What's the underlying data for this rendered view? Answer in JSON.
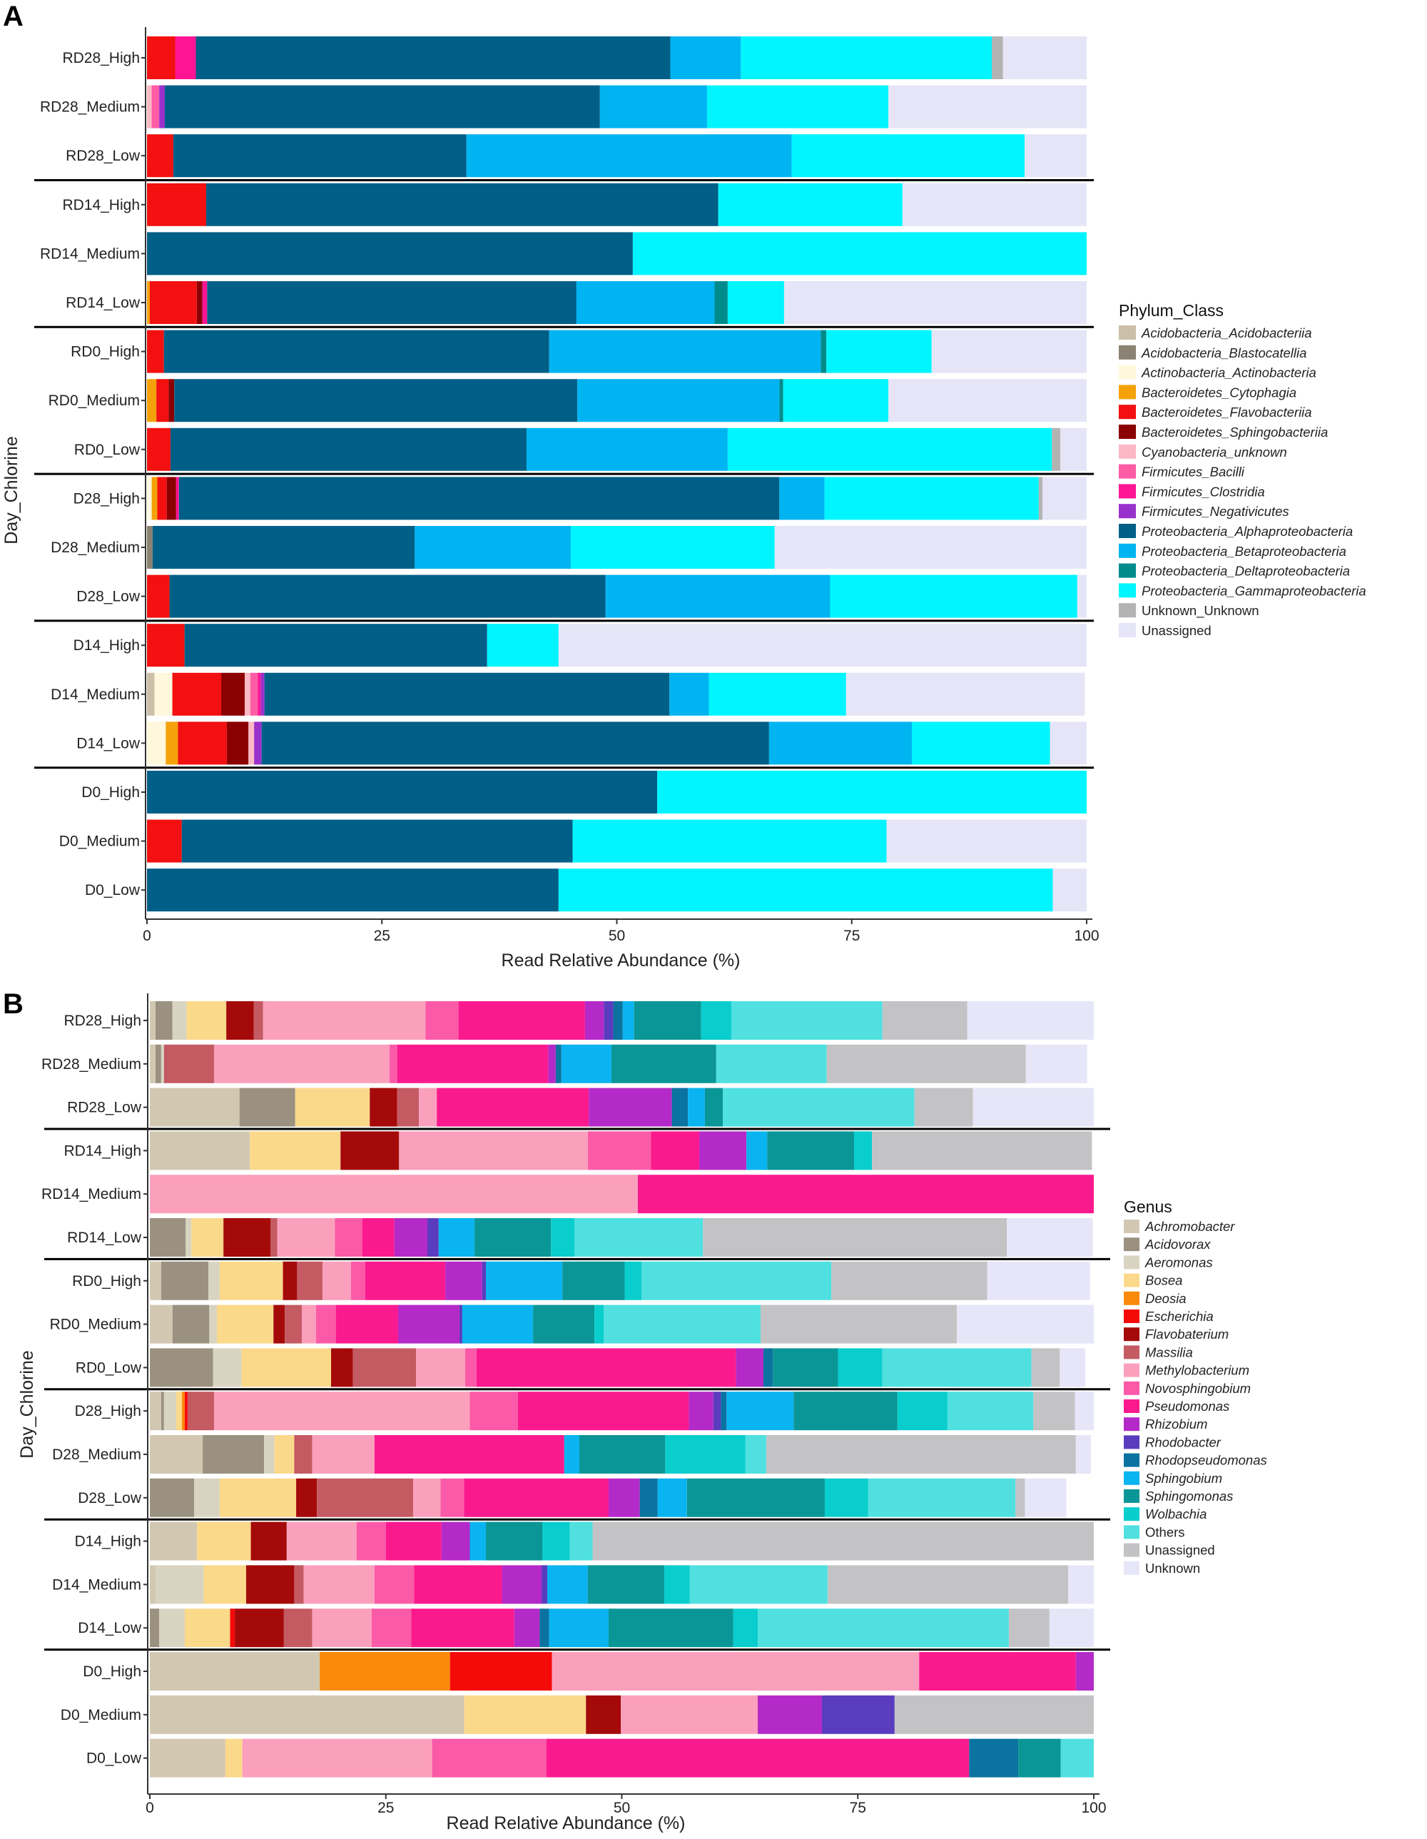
{
  "colors": {
    "Acidobacteria_Acidobacteriia": "#cbbfa9",
    "Acidobacteria_Blastocatellia": "#8b8274",
    "Actinobacteria_Actinobacteria": "#fff8dc",
    "Bacteroidetes_Cytophagia": "#f5a20a",
    "Bacteroidetes_Flavobacteriia": "#f21010",
    "Bacteroidetes_Sphingobacteriia": "#8b0000",
    "Cyanobacteria_unknown": "#fcb8c4",
    "Firmicutes_Bacilli": "#ff5ca6",
    "Firmicutes_Clostridia": "#ff1493",
    "Firmicutes_Negativicutes": "#9932cc",
    "Proteobacteria_Alphaproteobacteria": "#005f87",
    "Proteobacteria_Betaproteobacteria": "#00b4f2",
    "Proteobacteria_Deltaproteobacteria": "#008b8b",
    "Proteobacteria_Gammaproteobacteria": "#00f5ff",
    "Unknown_Unknown": "#b3b3b3",
    "Unassigned_A": "#e5e5f7",
    "Achromobacter": "#d2c8b2",
    "Acidovorax": "#9a9180",
    "Aeromonas": "#d9d4c1",
    "Bosea": "#fbd98a",
    "Deosia": "#fb8a0a",
    "Escherichia": "#f50a0a",
    "Flavobaterium": "#a50a0a",
    "Massilia": "#c45a62",
    "Methylobacterium": "#fba0bc",
    "Novosphingobium": "#fb5aa8",
    "Pseudomonas": "#fa1a8e",
    "Rhizobium": "#b42ac8",
    "Rhodobacter": "#5a3cbe",
    "Rhodopseudomonas": "#0a73a0",
    "Sphingobium": "#0ab4f0",
    "Sphingomonas": "#0a9696",
    "Wolbachia": "#0acdcd",
    "Others": "#50e0e0",
    "Unassigned_B": "#c3c3c6",
    "Unknown_B": "#e6e6f8",
    "separator": "#000000",
    "axis": "#333333"
  },
  "panel_a": {
    "letter": "A",
    "xlabel": "Read Relative Abundance (%)",
    "ylabel": "Day_Chlorine",
    "legend_title": "Phylum_Class",
    "x_ticks": [
      "0",
      "25",
      "50",
      "75",
      "100"
    ],
    "xlim": [
      0,
      100
    ]
  },
  "panel_b": {
    "letter": "B",
    "xlabel": "Read Relative Abundance (%)",
    "ylabel": "Day_Chlorine",
    "legend_title": "Genus",
    "x_ticks": [
      "0",
      "25",
      "50",
      "75",
      "100"
    ],
    "xlim": [
      0,
      100
    ]
  },
  "chart_data": [
    {
      "type": "bar",
      "orientation": "horizontal",
      "stacked": true,
      "title": "A",
      "xlabel": "Read Relative Abundance (%)",
      "ylabel": "Day_Chlorine",
      "xlim": [
        0,
        100
      ],
      "legend_title": "Phylum_Class",
      "categories": [
        "RD28_High",
        "RD28_Medium",
        "RD28_Low",
        "RD14_High",
        "RD14_Medium",
        "RD14_Low",
        "RD0_High",
        "RD0_Medium",
        "RD0_Low",
        "D28_High",
        "D28_Medium",
        "D28_Low",
        "D14_High",
        "D14_Medium",
        "D14_Low",
        "D0_High",
        "D0_Medium",
        "D0_Low"
      ],
      "group_separators_after": [
        2,
        5,
        8,
        11,
        14
      ],
      "series": [
        {
          "name": "Acidobacteria_Acidobacteriia",
          "color_key": "Acidobacteria_Acidobacteriia",
          "values": [
            0,
            0,
            0,
            0,
            0,
            0,
            0,
            0,
            0,
            0,
            0,
            0,
            0,
            0.8,
            0,
            0,
            0,
            0
          ]
        },
        {
          "name": "Acidobacteria_Blastocatellia",
          "color_key": "Acidobacteria_Blastocatellia",
          "values": [
            0,
            0,
            0,
            0,
            0,
            0,
            0,
            0,
            0,
            0,
            0.6,
            0,
            0,
            0,
            0,
            0,
            0,
            0
          ]
        },
        {
          "name": "Actinobacteria_Actinobacteria",
          "color_key": "Actinobacteria_Actinobacteria",
          "values": [
            0,
            0,
            0,
            0,
            0,
            0,
            0,
            0,
            0,
            0.5,
            0,
            0,
            0,
            1.9,
            2.0,
            0,
            0,
            0
          ]
        },
        {
          "name": "Bacteroidetes_Cytophagia",
          "color_key": "Bacteroidetes_Cytophagia",
          "values": [
            0,
            0,
            0,
            0,
            0,
            0.3,
            0,
            1.0,
            0,
            0.6,
            0,
            0,
            0,
            0,
            1.3,
            0,
            0,
            0
          ]
        },
        {
          "name": "Bacteroidetes_Flavobacteriia",
          "color_key": "Bacteroidetes_Flavobacteriia",
          "values": [
            3.0,
            0,
            2.8,
            6.3,
            0,
            5.0,
            1.8,
            1.3,
            2.5,
            1.0,
            0,
            2.4,
            4.0,
            5.2,
            5.2,
            0,
            3.7,
            0
          ]
        },
        {
          "name": "Bacteroidetes_Sphingobacteriia",
          "color_key": "Bacteroidetes_Sphingobacteriia",
          "values": [
            0,
            0,
            0,
            0,
            0,
            0.6,
            0,
            0.6,
            0,
            1.0,
            0,
            0,
            0,
            2.5,
            2.3,
            0,
            0,
            0
          ]
        },
        {
          "name": "Cyanobacteria_unknown",
          "color_key": "Cyanobacteria_unknown",
          "values": [
            0,
            0.5,
            0,
            0,
            0,
            0,
            0,
            0,
            0,
            0,
            0,
            0,
            0,
            0.6,
            0.6,
            0,
            0,
            0
          ]
        },
        {
          "name": "Firmicutes_Bacilli",
          "color_key": "Firmicutes_Bacilli",
          "values": [
            0,
            0.8,
            0,
            0,
            0,
            0,
            0,
            0,
            0,
            0,
            0,
            0,
            0,
            0.8,
            0,
            0,
            0,
            0
          ]
        },
        {
          "name": "Firmicutes_Clostridia",
          "color_key": "Firmicutes_Clostridia",
          "values": [
            2.2,
            0,
            0,
            0,
            0,
            0.5,
            0,
            0,
            0,
            0.3,
            0,
            0,
            0,
            0.3,
            0,
            0,
            0,
            0
          ]
        },
        {
          "name": "Firmicutes_Negativicutes",
          "color_key": "Firmicutes_Negativicutes",
          "values": [
            0,
            0.6,
            0,
            0,
            0,
            0,
            0,
            0,
            0,
            0,
            0,
            0,
            0,
            0.4,
            0.8,
            0,
            0,
            0
          ]
        },
        {
          "name": "Proteobacteria_Alphaproteobacteria",
          "color_key": "Proteobacteria_Alphaproteobacteria",
          "values": [
            50.5,
            46.3,
            31.2,
            54.5,
            51.7,
            39.3,
            41.0,
            42.9,
            37.9,
            63.9,
            27.9,
            46.4,
            32.2,
            43.1,
            54.0,
            54.3,
            41.6,
            43.8
          ]
        },
        {
          "name": "Proteobacteria_Betaproteobacteria",
          "color_key": "Proteobacteria_Betaproteobacteria",
          "values": [
            7.5,
            11.4,
            34.6,
            0,
            0,
            14.7,
            28.9,
            21.5,
            21.4,
            4.8,
            16.6,
            23.9,
            0,
            4.2,
            15.2,
            0,
            0,
            0
          ]
        },
        {
          "name": "Proteobacteria_Deltaproteobacteria",
          "color_key": "Proteobacteria_Deltaproteobacteria",
          "values": [
            0,
            0,
            0,
            0,
            0,
            1.4,
            0.6,
            0.4,
            0,
            0,
            0,
            0,
            0,
            0,
            0,
            0,
            0,
            0
          ]
        },
        {
          "name": "Proteobacteria_Gammaproteobacteria",
          "color_key": "Proteobacteria_Gammaproteobacteria",
          "values": [
            26.7,
            19.3,
            24.8,
            19.6,
            48.3,
            6.0,
            11.2,
            11.2,
            34.5,
            22.8,
            21.7,
            26.3,
            7.6,
            14.6,
            14.7,
            45.7,
            33.4,
            52.6
          ]
        },
        {
          "name": "Unknown_Unknown",
          "color_key": "Unknown_Unknown",
          "values": [
            1.2,
            0,
            0,
            0,
            0,
            0,
            0,
            0,
            0.9,
            0.4,
            0,
            0,
            0,
            0,
            0,
            0,
            0,
            0
          ]
        },
        {
          "name": "Unassigned",
          "color_key": "Unassigned_A",
          "values": [
            8.9,
            21.1,
            6.6,
            19.6,
            0,
            32.2,
            16.5,
            21.1,
            2.8,
            4.7,
            33.2,
            1.0,
            56.2,
            25.4,
            4.0,
            0,
            21.3,
            3.6
          ]
        }
      ]
    },
    {
      "type": "bar",
      "orientation": "horizontal",
      "stacked": true,
      "title": "B",
      "xlabel": "Read Relative Abundance (%)",
      "ylabel": "Day_Chlorine",
      "xlim": [
        0,
        100
      ],
      "legend_title": "Genus",
      "categories": [
        "RD28_High",
        "RD28_Medium",
        "RD28_Low",
        "RD14_High",
        "RD14_Medium",
        "RD14_Low",
        "RD0_High",
        "RD0_Medium",
        "RD0_Low",
        "D28_High",
        "D28_Medium",
        "D28_Low",
        "D14_High",
        "D14_Medium",
        "D14_Low",
        "D0_High",
        "D0_Medium",
        "D0_Low"
      ],
      "group_separators_after": [
        2,
        5,
        8,
        11,
        14
      ],
      "series": [
        {
          "name": "Achromobacter",
          "color_key": "Achromobacter",
          "values": [
            0.6,
            0.6,
            9.5,
            10.6,
            0,
            0,
            1.2,
            2.4,
            0,
            1.2,
            5.6,
            0,
            5.0,
            0.6,
            0,
            18.0,
            33.3,
            8.0
          ]
        },
        {
          "name": "Acidovorax",
          "color_key": "Acidovorax",
          "values": [
            1.8,
            0.6,
            5.9,
            0,
            0,
            3.8,
            5.0,
            3.9,
            6.7,
            0.3,
            6.5,
            4.7,
            0,
            0,
            1.0,
            0,
            0,
            0
          ]
        },
        {
          "name": "Aeromonas",
          "color_key": "Aeromonas",
          "values": [
            1.5,
            0.3,
            0,
            0,
            0,
            0.6,
            1.2,
            0.8,
            3.0,
            1.3,
            1.1,
            2.7,
            0,
            5.1,
            2.7,
            0,
            0,
            0
          ]
        },
        {
          "name": "Bosea",
          "color_key": "Bosea",
          "values": [
            4.2,
            0,
            7.9,
            9.6,
            0,
            3.4,
            6.7,
            6.0,
            9.5,
            0.6,
            2.1,
            8.1,
            5.7,
            4.5,
            4.8,
            0,
            12.9,
            1.8
          ]
        },
        {
          "name": "Deosia",
          "color_key": "Deosia",
          "values": [
            0,
            0,
            0,
            0,
            0,
            0,
            0,
            0,
            0,
            0.3,
            0,
            0,
            0,
            0,
            0,
            13.8,
            0,
            0
          ]
        },
        {
          "name": "Escherichia",
          "color_key": "Escherichia",
          "values": [
            0,
            0,
            0,
            0,
            0,
            0,
            0,
            0,
            0,
            0.3,
            0,
            0,
            0,
            0,
            0.5,
            10.8,
            0,
            0
          ]
        },
        {
          "name": "Flavobaterium",
          "color_key": "Flavobaterium",
          "values": [
            2.9,
            0,
            2.9,
            6.2,
            0,
            5.0,
            1.5,
            1.2,
            2.3,
            0,
            0,
            2.2,
            3.8,
            5.1,
            5.2,
            0,
            3.7,
            0
          ]
        },
        {
          "name": "Massilia",
          "color_key": "Massilia",
          "values": [
            1.0,
            5.3,
            2.3,
            0,
            0,
            0.7,
            2.7,
            1.8,
            6.7,
            2.8,
            1.9,
            10.2,
            0,
            1.0,
            3.0,
            0,
            0,
            0
          ]
        },
        {
          "name": "Methylobacterium",
          "color_key": "Methylobacterium",
          "values": [
            17.2,
            18.6,
            1.9,
            20.0,
            51.7,
            6.1,
            3.0,
            1.5,
            5.2,
            27.1,
            6.6,
            2.9,
            7.4,
            7.5,
            6.3,
            38.9,
            14.5,
            20.1
          ]
        },
        {
          "name": "Novosphingobium",
          "color_key": "Novosphingobium",
          "values": [
            3.5,
            0.8,
            0,
            6.7,
            0,
            2.9,
            1.5,
            2.1,
            1.2,
            5.1,
            0,
            2.5,
            3.1,
            4.2,
            4.2,
            0,
            0,
            12.1
          ]
        },
        {
          "name": "Pseudomonas",
          "color_key": "Pseudomonas",
          "values": [
            13.4,
            16.0,
            16.1,
            5.1,
            48.3,
            3.4,
            8.5,
            6.6,
            27.5,
            18.1,
            20.1,
            15.3,
            5.9,
            9.3,
            10.9,
            16.6,
            0,
            44.8
          ]
        },
        {
          "name": "Rhizobium",
          "color_key": "Rhizobium",
          "values": [
            2.0,
            0.8,
            8.8,
            5.0,
            0,
            3.5,
            3.9,
            6.5,
            2.9,
            2.6,
            0,
            3.3,
            3.0,
            4.2,
            2.7,
            1.9,
            6.8,
            0
          ]
        },
        {
          "name": "Rhodobacter",
          "color_key": "Rhodobacter",
          "values": [
            1.0,
            0,
            0,
            0,
            0,
            1.2,
            0.4,
            0.3,
            0,
            0.8,
            0,
            0,
            0,
            0.6,
            0,
            0,
            7.7,
            0
          ]
        },
        {
          "name": "Rhodopseudomonas",
          "color_key": "Rhodopseudomonas",
          "values": [
            1.0,
            0.6,
            1.7,
            0,
            0,
            0,
            0,
            0,
            1.0,
            0.6,
            0,
            1.9,
            0,
            0,
            1.0,
            0,
            0,
            5.2
          ]
        },
        {
          "name": "Sphingobium",
          "color_key": "Sphingobium",
          "values": [
            1.2,
            5.3,
            1.8,
            2.2,
            0,
            3.8,
            8.1,
            7.5,
            0,
            7.1,
            1.6,
            3.1,
            1.7,
            4.3,
            6.3,
            0,
            0,
            0
          ]
        },
        {
          "name": "Sphingomonas",
          "color_key": "Sphingomonas",
          "values": [
            7.1,
            11.1,
            1.9,
            9.2,
            0,
            8.1,
            6.6,
            6.5,
            6.9,
            11.0,
            9.1,
            14.6,
            6.0,
            8.1,
            13.2,
            0,
            0,
            4.5
          ]
        },
        {
          "name": "Wolbachia",
          "color_key": "Wolbachia",
          "values": [
            3.2,
            0,
            0,
            1.9,
            0,
            2.5,
            1.8,
            1.0,
            4.7,
            5.3,
            8.5,
            4.6,
            2.9,
            2.7,
            2.6,
            0,
            0,
            0
          ]
        },
        {
          "name": "Others",
          "color_key": "Others",
          "values": [
            16.0,
            11.7,
            20.3,
            0,
            0,
            13.6,
            20.1,
            16.6,
            15.8,
            9.1,
            2.2,
            15.6,
            2.4,
            14.6,
            26.6,
            0,
            0,
            4.4
          ]
        },
        {
          "name": "Unassigned",
          "color_key": "Unassigned_B",
          "values": [
            9.0,
            21.1,
            6.2,
            23.3,
            0,
            32.2,
            16.5,
            20.8,
            3.0,
            4.4,
            32.8,
            1.0,
            53.2,
            25.5,
            4.3,
            0,
            21.1,
            3.4
          ]
        },
        {
          "name": "Unknown",
          "color_key": "Unknown_B",
          "values": [
            13.5,
            6.5,
            14.8,
            0,
            0,
            9.1,
            10.9,
            15.6,
            2.7,
            3.3,
            1.6,
            4.4,
            0,
            3.3,
            4.7,
            0,
            0,
            0
          ]
        }
      ]
    }
  ]
}
